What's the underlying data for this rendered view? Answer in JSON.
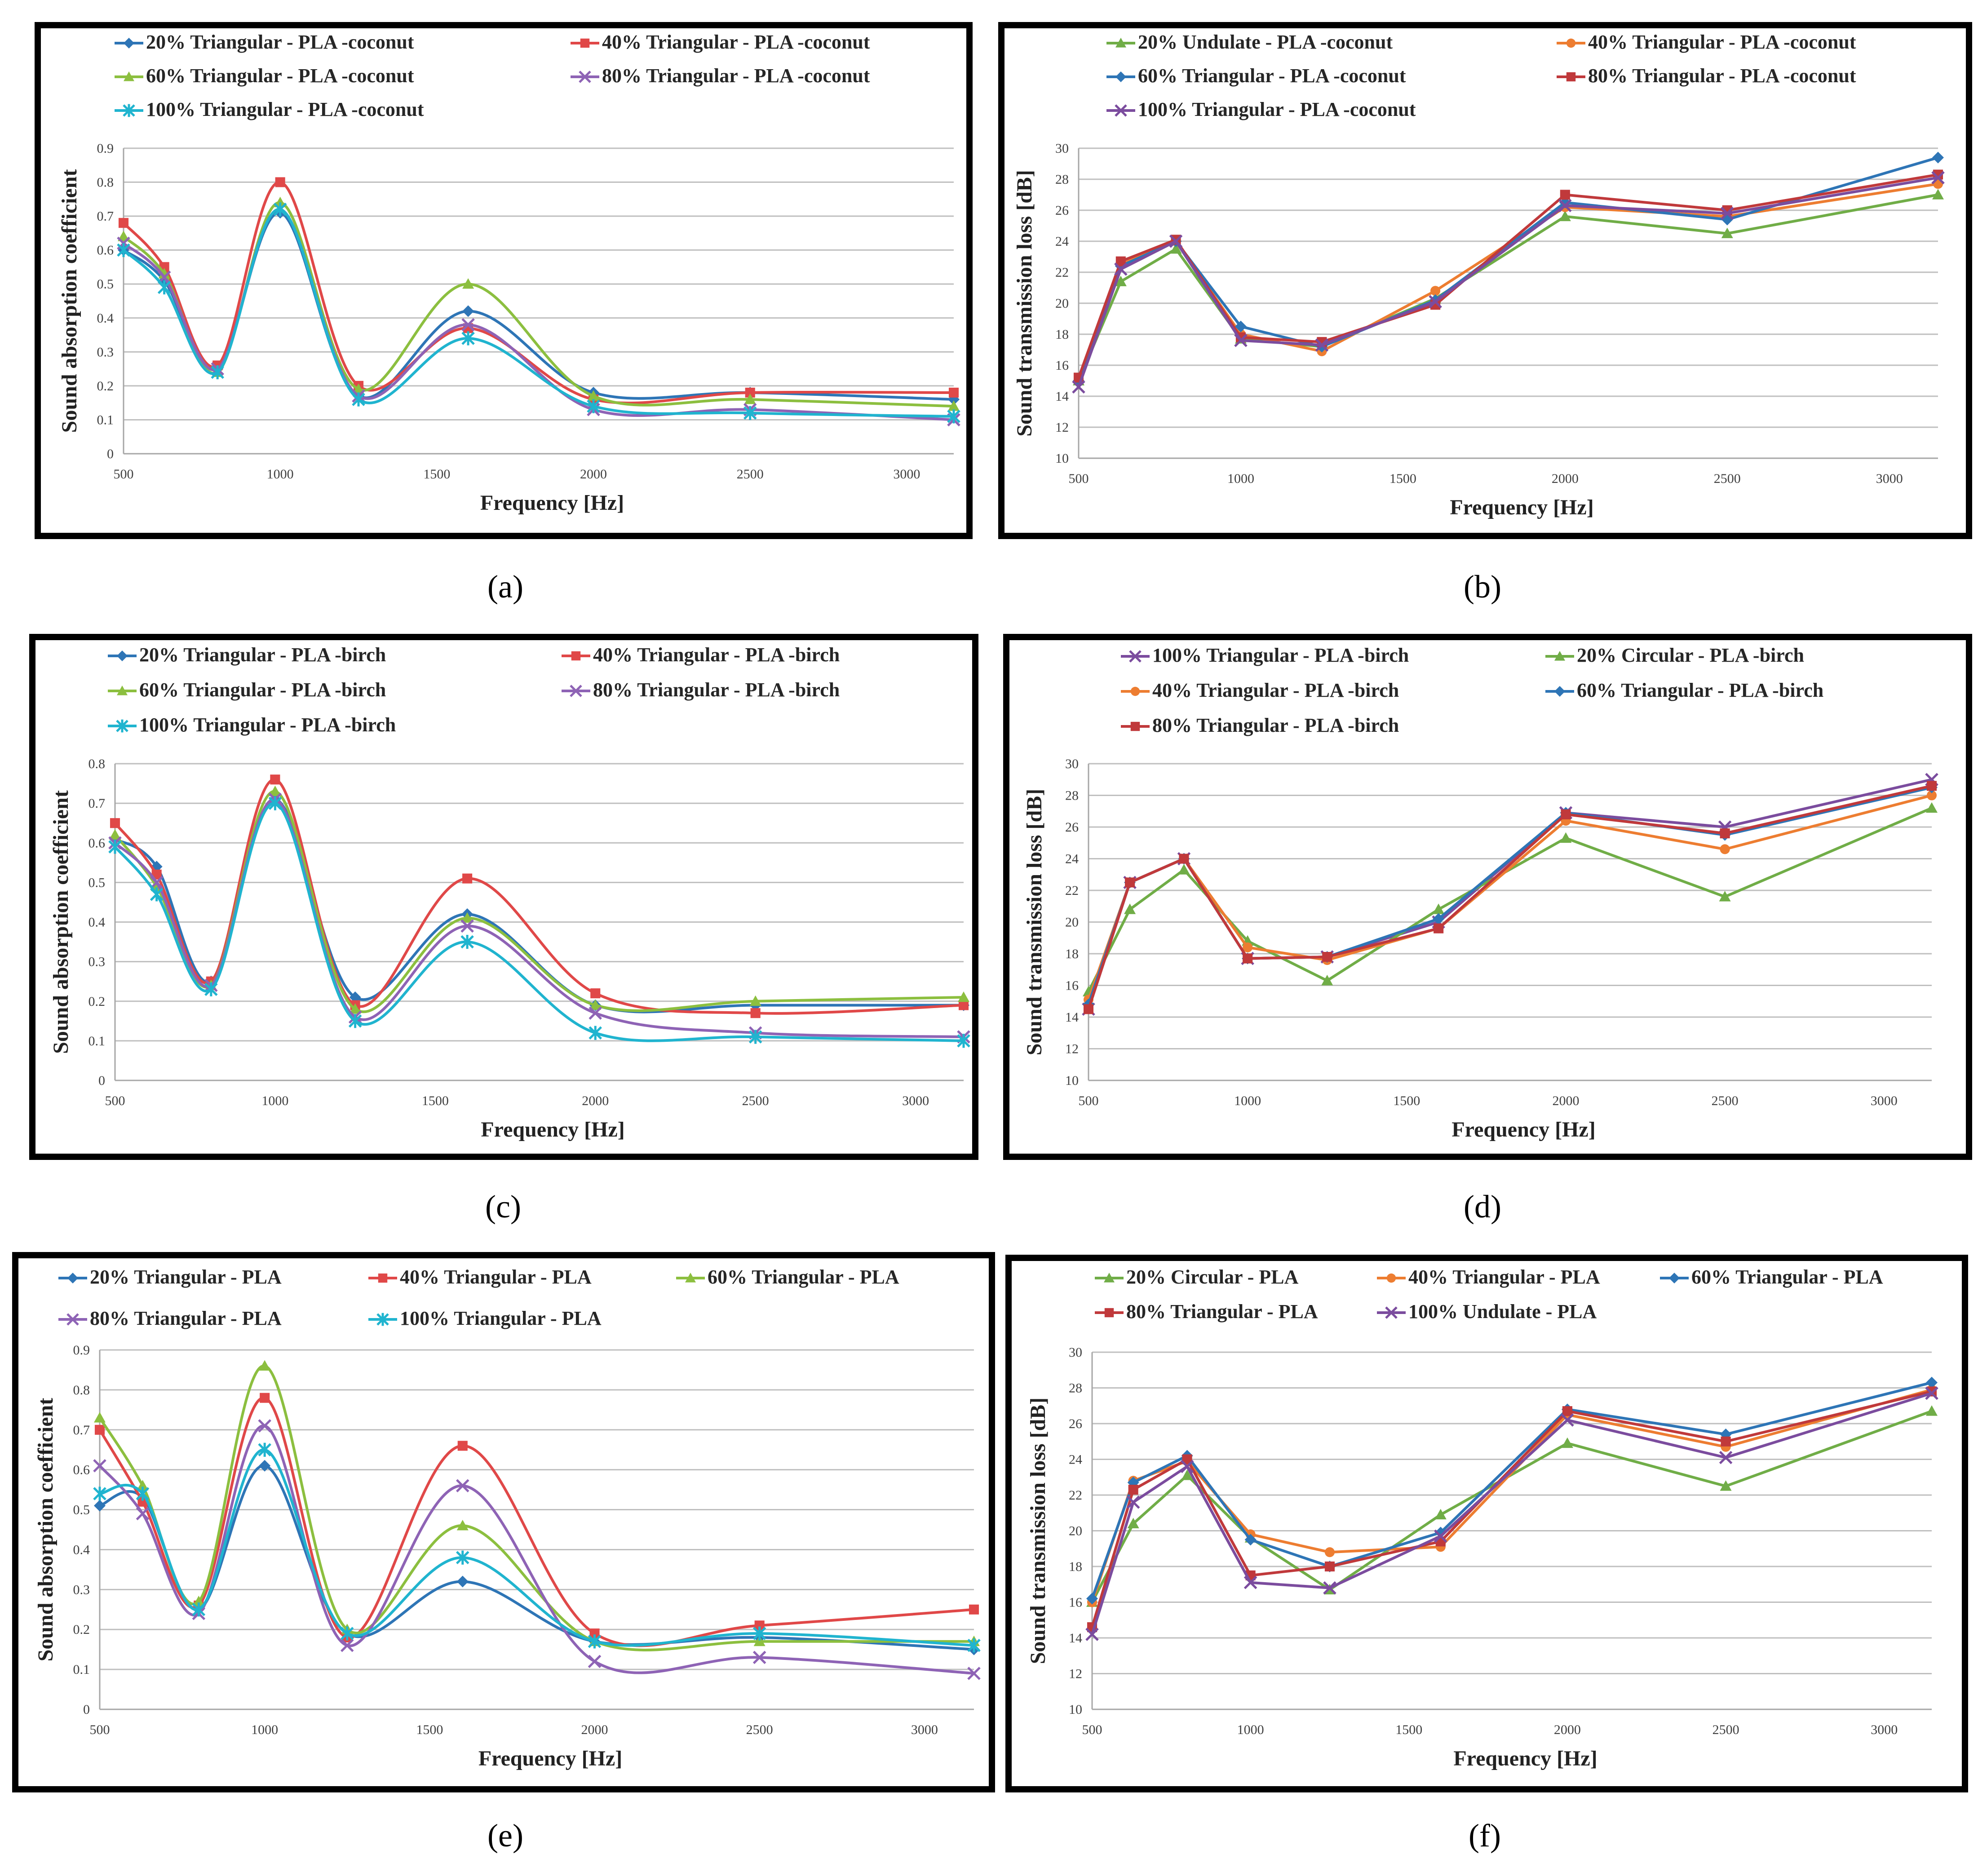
{
  "charts": [
    {
      "caption": "(a)",
      "chart_data": {
        "type": "line",
        "ylabel": "Sound absorption coefficient",
        "xlabel": "Frequency [Hz]",
        "x": [
          500,
          630,
          800,
          1000,
          1250,
          1600,
          2000,
          2500,
          3150
        ],
        "xlim": [
          500,
          3150
        ],
        "xticks": [
          500,
          1000,
          1500,
          2000,
          2500,
          3000
        ],
        "ylim": [
          0,
          0.9
        ],
        "yticks": [
          0,
          0.1,
          0.2,
          0.3,
          0.4,
          0.5,
          0.6,
          0.7,
          0.8,
          0.9
        ],
        "smooth": true,
        "grid": "horizontal",
        "legend_position": "top",
        "series": [
          {
            "name": "20% Triangular - PLA -coconut",
            "color": "#2e75b6",
            "marker": "diamond",
            "values": [
              0.6,
              0.51,
              0.25,
              0.71,
              0.17,
              0.42,
              0.18,
              0.18,
              0.16
            ]
          },
          {
            "name": "40% Triangular - PLA -coconut",
            "color": "#e04848",
            "marker": "square",
            "values": [
              0.68,
              0.55,
              0.26,
              0.8,
              0.2,
              0.37,
              0.16,
              0.18,
              0.18
            ]
          },
          {
            "name": "60% Triangular - PLA -coconut",
            "color": "#8cbf3f",
            "marker": "triangle",
            "values": [
              0.64,
              0.53,
              0.24,
              0.74,
              0.19,
              0.5,
              0.17,
              0.16,
              0.14
            ]
          },
          {
            "name": "80% Triangular - PLA -coconut",
            "color": "#8e63b5",
            "marker": "x",
            "values": [
              0.62,
              0.52,
              0.25,
              0.72,
              0.17,
              0.38,
              0.13,
              0.13,
              0.1
            ]
          },
          {
            "name": "100% Triangular - PLA -coconut",
            "color": "#20b4cf",
            "marker": "star",
            "values": [
              0.6,
              0.49,
              0.24,
              0.72,
              0.16,
              0.34,
              0.14,
              0.12,
              0.11
            ]
          }
        ]
      }
    },
    {
      "caption": "(b)",
      "chart_data": {
        "type": "line",
        "ylabel": "Sound transmission loss [dB]",
        "xlabel": "Frequency [Hz]",
        "x": [
          500,
          630,
          800,
          1000,
          1250,
          1600,
          2000,
          2500,
          3150
        ],
        "xlim": [
          500,
          3150
        ],
        "xticks": [
          500,
          1000,
          1500,
          2000,
          2500,
          3000
        ],
        "ylim": [
          10,
          30
        ],
        "yticks": [
          10,
          12,
          14,
          16,
          18,
          20,
          22,
          24,
          26,
          28,
          30
        ],
        "smooth": false,
        "grid": "horizontal",
        "legend_position": "top",
        "series": [
          {
            "name": "20% Undulate - PLA -coconut",
            "color": "#70ad47",
            "marker": "triangle",
            "values": [
              15.0,
              21.4,
              23.5,
              17.7,
              17.2,
              20.3,
              25.6,
              24.5,
              27.0
            ]
          },
          {
            "name": "40% Triangular - PLA -coconut",
            "color": "#ed7d31",
            "marker": "circle",
            "values": [
              15.1,
              22.5,
              24.0,
              18.0,
              16.9,
              20.8,
              26.2,
              25.6,
              27.7
            ]
          },
          {
            "name": "60% Triangular - PLA -coconut",
            "color": "#2e75b6",
            "marker": "diamond",
            "values": [
              15.0,
              22.4,
              24.0,
              18.5,
              17.2,
              20.2,
              26.5,
              25.4,
              29.4
            ]
          },
          {
            "name": "80% Triangular - PLA -coconut",
            "color": "#c0393b",
            "marker": "square",
            "values": [
              15.2,
              22.7,
              24.1,
              17.8,
              17.5,
              19.9,
              27.0,
              26.0,
              28.3
            ]
          },
          {
            "name": "100% Triangular - PLA -coconut",
            "color": "#7b4c9e",
            "marker": "x",
            "values": [
              14.6,
              22.2,
              24.0,
              17.6,
              17.3,
              20.1,
              26.3,
              25.8,
              28.1
            ]
          }
        ]
      }
    },
    {
      "caption": "(c)",
      "chart_data": {
        "type": "line",
        "ylabel": "Sound absorption coefficient",
        "xlabel": "Frequency [Hz]",
        "x": [
          500,
          630,
          800,
          1000,
          1250,
          1600,
          2000,
          2500,
          3150
        ],
        "xlim": [
          500,
          3150
        ],
        "xticks": [
          500,
          1000,
          1500,
          2000,
          2500,
          3000
        ],
        "ylim": [
          0,
          0.8
        ],
        "yticks": [
          0,
          0.1,
          0.2,
          0.3,
          0.4,
          0.5,
          0.6,
          0.7,
          0.8
        ],
        "smooth": true,
        "grid": "horizontal",
        "legend_position": "top",
        "series": [
          {
            "name": "20% Triangular - PLA -birch",
            "color": "#2e75b6",
            "marker": "diamond",
            "values": [
              0.61,
              0.54,
              0.25,
              0.71,
              0.21,
              0.42,
              0.19,
              0.19,
              0.19
            ]
          },
          {
            "name": "40% Triangular - PLA -birch",
            "color": "#e04848",
            "marker": "square",
            "values": [
              0.65,
              0.52,
              0.25,
              0.76,
              0.19,
              0.51,
              0.22,
              0.17,
              0.19
            ]
          },
          {
            "name": "60% Triangular - PLA -birch",
            "color": "#8cbf3f",
            "marker": "triangle",
            "values": [
              0.62,
              0.49,
              0.24,
              0.73,
              0.18,
              0.41,
              0.19,
              0.2,
              0.21
            ]
          },
          {
            "name": "80% Triangular - PLA -birch",
            "color": "#8e63b5",
            "marker": "x",
            "values": [
              0.6,
              0.5,
              0.24,
              0.71,
              0.16,
              0.39,
              0.17,
              0.12,
              0.11
            ]
          },
          {
            "name": "100% Triangular - PLA -birch",
            "color": "#20b4cf",
            "marker": "star",
            "values": [
              0.59,
              0.47,
              0.23,
              0.7,
              0.15,
              0.35,
              0.12,
              0.11,
              0.1
            ]
          }
        ]
      }
    },
    {
      "caption": "(d)",
      "chart_data": {
        "type": "line",
        "ylabel": "Sound transmission loss [dB]",
        "xlabel": "Frequency [Hz]",
        "x": [
          500,
          630,
          800,
          1000,
          1250,
          1600,
          2000,
          2500,
          3150
        ],
        "xlim": [
          500,
          3150
        ],
        "xticks": [
          500,
          1000,
          1500,
          2000,
          2500,
          3000
        ],
        "ylim": [
          10,
          30
        ],
        "yticks": [
          10,
          12,
          14,
          16,
          18,
          20,
          22,
          24,
          26,
          28,
          30
        ],
        "smooth": false,
        "grid": "horizontal",
        "legend_position": "top",
        "series": [
          {
            "name": "100% Triangular - PLA -birch",
            "color": "#7b4c9e",
            "marker": "x",
            "values": [
              14.5,
              22.5,
              24.0,
              17.7,
              17.8,
              20.0,
              26.9,
              26.0,
              29.0
            ]
          },
          {
            "name": "20% Circular - PLA -birch",
            "color": "#70ad47",
            "marker": "triangle",
            "values": [
              15.6,
              20.8,
              23.3,
              18.8,
              16.3,
              20.8,
              25.3,
              21.6,
              27.2
            ]
          },
          {
            "name": "40% Triangular - PLA -birch",
            "color": "#ed7d31",
            "marker": "circle",
            "values": [
              15.1,
              22.5,
              24.0,
              18.4,
              17.6,
              19.6,
              26.4,
              24.6,
              28.0
            ]
          },
          {
            "name": "60% Triangular - PLA -birch",
            "color": "#2e75b6",
            "marker": "diamond",
            "values": [
              14.8,
              22.5,
              24.0,
              17.7,
              17.8,
              20.2,
              26.9,
              25.5,
              28.5
            ]
          },
          {
            "name": "80% Triangular - PLA -birch",
            "color": "#c0393b",
            "marker": "square",
            "values": [
              14.5,
              22.5,
              24.0,
              17.7,
              17.8,
              19.6,
              26.8,
              25.6,
              28.6
            ]
          }
        ]
      }
    },
    {
      "caption": "(e)",
      "chart_data": {
        "type": "line",
        "ylabel": "Sound absorption coefficient",
        "xlabel": "Frequency [Hz]",
        "x": [
          500,
          630,
          800,
          1000,
          1250,
          1600,
          2000,
          2500,
          3150
        ],
        "xlim": [
          500,
          3150
        ],
        "xticks": [
          500,
          1000,
          1500,
          2000,
          2500,
          3000
        ],
        "ylim": [
          0,
          0.9
        ],
        "yticks": [
          0,
          0.1,
          0.2,
          0.3,
          0.4,
          0.5,
          0.6,
          0.7,
          0.8,
          0.9
        ],
        "smooth": true,
        "grid": "horizontal",
        "legend_position": "top",
        "series": [
          {
            "name": "20% Triangular - PLA",
            "color": "#2e75b6",
            "marker": "diamond",
            "values": [
              0.51,
              0.53,
              0.25,
              0.61,
              0.19,
              0.32,
              0.17,
              0.18,
              0.15
            ]
          },
          {
            "name": "40% Triangular - PLA",
            "color": "#e04848",
            "marker": "square",
            "values": [
              0.7,
              0.52,
              0.26,
              0.78,
              0.18,
              0.66,
              0.19,
              0.21,
              0.25
            ]
          },
          {
            "name": "60% Triangular - PLA",
            "color": "#8cbf3f",
            "marker": "triangle",
            "values": [
              0.73,
              0.56,
              0.27,
              0.86,
              0.2,
              0.46,
              0.17,
              0.17,
              0.17
            ]
          },
          {
            "name": "80% Triangular - PLA",
            "color": "#8e63b5",
            "marker": "x",
            "values": [
              0.61,
              0.49,
              0.24,
              0.71,
              0.16,
              0.56,
              0.12,
              0.13,
              0.09
            ]
          },
          {
            "name": "100% Triangular - PLA",
            "color": "#20b4cf",
            "marker": "star",
            "values": [
              0.54,
              0.54,
              0.25,
              0.65,
              0.19,
              0.38,
              0.17,
              0.19,
              0.16
            ]
          }
        ]
      }
    },
    {
      "caption": "(f)",
      "chart_data": {
        "type": "line",
        "ylabel": "Sound transmission loss [dB]",
        "xlabel": "Frequency [Hz]",
        "x": [
          500,
          630,
          800,
          1000,
          1250,
          1600,
          2000,
          2500,
          3150
        ],
        "xlim": [
          500,
          3150
        ],
        "xticks": [
          500,
          1000,
          1500,
          2000,
          2500,
          3000
        ],
        "ylim": [
          10,
          30
        ],
        "yticks": [
          10,
          12,
          14,
          16,
          18,
          20,
          22,
          24,
          26,
          28,
          30
        ],
        "smooth": false,
        "grid": "horizontal",
        "legend_position": "top",
        "series": [
          {
            "name": "20% Circular - PLA",
            "color": "#70ad47",
            "marker": "triangle",
            "values": [
              16.0,
              20.4,
              23.1,
              19.6,
              16.7,
              20.9,
              24.9,
              22.5,
              26.7
            ]
          },
          {
            "name": "40% Triangular - PLA",
            "color": "#ed7d31",
            "marker": "circle",
            "values": [
              16.0,
              22.8,
              23.9,
              19.8,
              18.8,
              19.1,
              26.5,
              24.7,
              27.9
            ]
          },
          {
            "name": "60% Triangular - PLA",
            "color": "#2e75b6",
            "marker": "diamond",
            "values": [
              16.2,
              22.7,
              24.2,
              19.5,
              18.0,
              19.9,
              26.8,
              25.4,
              28.3
            ]
          },
          {
            "name": "80% Triangular - PLA",
            "color": "#c0393b",
            "marker": "square",
            "values": [
              14.6,
              22.3,
              24.0,
              17.5,
              18.0,
              19.4,
              26.7,
              25.0,
              27.8
            ]
          },
          {
            "name": "100% Undulate - PLA",
            "color": "#7b4c9e",
            "marker": "x",
            "values": [
              14.2,
              21.6,
              23.6,
              17.1,
              16.8,
              19.7,
              26.2,
              24.1,
              27.7
            ]
          }
        ]
      }
    }
  ]
}
